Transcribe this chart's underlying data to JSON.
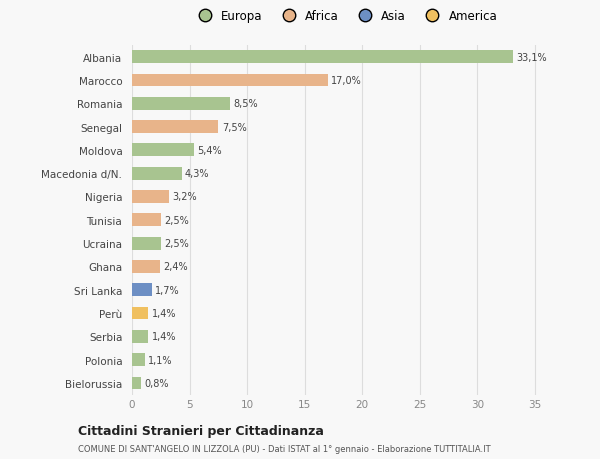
{
  "categories": [
    "Albania",
    "Marocco",
    "Romania",
    "Senegal",
    "Moldova",
    "Macedonia d/N.",
    "Nigeria",
    "Tunisia",
    "Ucraina",
    "Ghana",
    "Sri Lanka",
    "Perù",
    "Serbia",
    "Polonia",
    "Bielorussia"
  ],
  "values": [
    33.1,
    17.0,
    8.5,
    7.5,
    5.4,
    4.3,
    3.2,
    2.5,
    2.5,
    2.4,
    1.7,
    1.4,
    1.4,
    1.1,
    0.8
  ],
  "labels": [
    "33,1%",
    "17,0%",
    "8,5%",
    "7,5%",
    "5,4%",
    "4,3%",
    "3,2%",
    "2,5%",
    "2,5%",
    "2,4%",
    "1,7%",
    "1,4%",
    "1,4%",
    "1,1%",
    "0,8%"
  ],
  "colors": [
    "#a8c490",
    "#e8b48a",
    "#a8c490",
    "#e8b48a",
    "#a8c490",
    "#a8c490",
    "#e8b48a",
    "#e8b48a",
    "#a8c490",
    "#e8b48a",
    "#6d8fc4",
    "#f0c060",
    "#a8c490",
    "#a8c490",
    "#a8c490"
  ],
  "legend_labels": [
    "Europa",
    "Africa",
    "Asia",
    "America"
  ],
  "legend_colors": [
    "#a8c490",
    "#e8b48a",
    "#6d8fc4",
    "#f0c060"
  ],
  "title": "Cittadini Stranieri per Cittadinanza",
  "subtitle": "COMUNE DI SANT'ANGELO IN LIZZOLA (PU) - Dati ISTAT al 1° gennaio - Elaborazione TUTTITALIA.IT",
  "xlim": [
    0,
    37
  ],
  "xticks": [
    0,
    5,
    10,
    15,
    20,
    25,
    30,
    35
  ],
  "background_color": "#f8f8f8",
  "grid_color": "#dddddd",
  "bar_height": 0.55,
  "figwidth": 6.0,
  "figheight": 4.6,
  "dpi": 100
}
